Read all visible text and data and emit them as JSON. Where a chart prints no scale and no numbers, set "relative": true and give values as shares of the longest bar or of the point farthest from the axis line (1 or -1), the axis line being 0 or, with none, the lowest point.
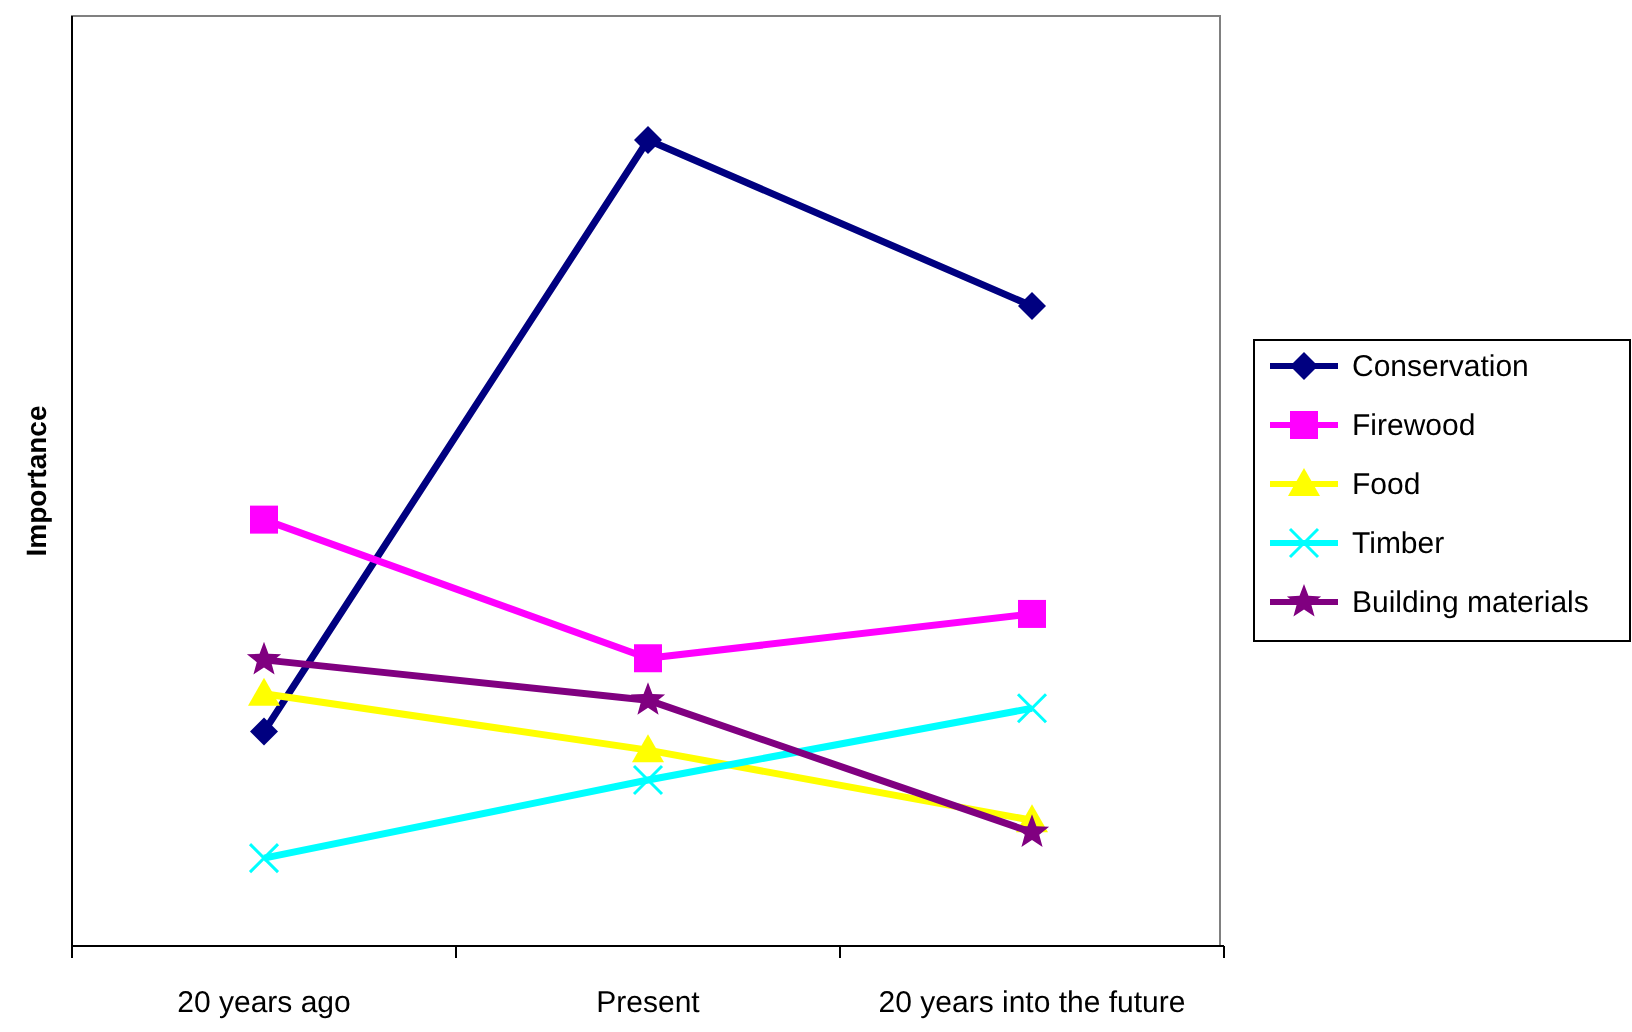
{
  "chart_data": {
    "type": "line",
    "ylabel": "Importance",
    "relative": true,
    "categories": [
      "20 years ago",
      "Present",
      "20 years into the future"
    ],
    "legend": "right",
    "series": [
      {
        "name": "Conservation",
        "color": "#000080",
        "marker": "diamond",
        "values": [
          0.266,
          1,
          0.794
        ]
      },
      {
        "name": "Firewood",
        "color": "#ff00ff",
        "marker": "square",
        "values": [
          0.529,
          0.357,
          0.412
        ]
      },
      {
        "name": "Food",
        "color": "#ffff00",
        "marker": "triangle",
        "values": [
          0.313,
          0.243,
          0.156
        ]
      },
      {
        "name": "Timber",
        "color": "#00ffff",
        "marker": "cross",
        "values": [
          0.109,
          0.206,
          0.295
        ]
      },
      {
        "name": "Building materials",
        "color": "#800080",
        "marker": "star",
        "values": [
          0.355,
          0.305,
          0.141
        ]
      }
    ]
  }
}
